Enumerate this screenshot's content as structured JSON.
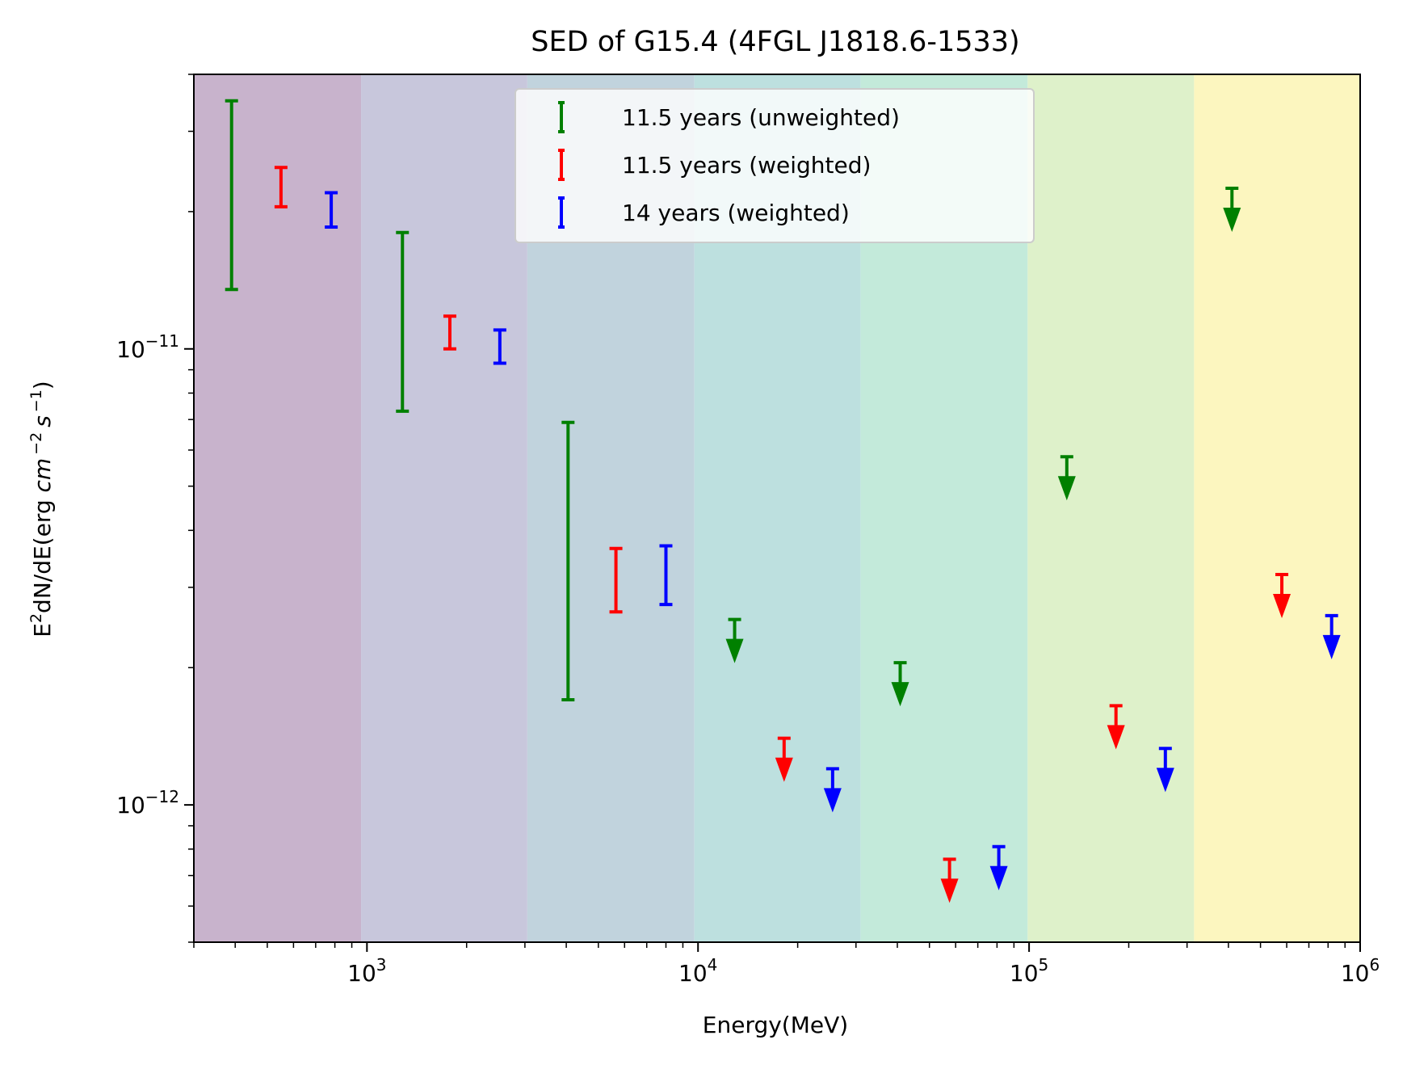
{
  "chart_data": {
    "type": "scatter",
    "title": "SED of G15.4 (4FGL J1818.6-1533)",
    "xlabel": "Energy(MeV)",
    "ylabel_main": "E",
    "ylabel_sup": "2",
    "ylabel_rest": "dN/dE(erg ",
    "ylabel_cm": "cm",
    "ylabel_cm_exp": "−2",
    "ylabel_s": "s",
    "ylabel_s_exp": "−1",
    "ylabel_close": ")",
    "xscale": "log",
    "yscale": "log",
    "xlim": [
      300,
      1000000
    ],
    "ylim": [
      5e-13,
      4e-11
    ],
    "x_ticks": [
      {
        "value": 1000,
        "base": "10",
        "exp": "3"
      },
      {
        "value": 10000,
        "base": "10",
        "exp": "4"
      },
      {
        "value": 100000,
        "base": "10",
        "exp": "5"
      },
      {
        "value": 1000000,
        "base": "10",
        "exp": "6"
      }
    ],
    "y_ticks": [
      {
        "value": 1e-12,
        "base": "10",
        "exp": "−12"
      },
      {
        "value": 1e-11,
        "base": "10",
        "exp": "−11"
      }
    ],
    "bands": [
      {
        "from": 300,
        "to": 960,
        "color": "#c8b3cc"
      },
      {
        "from": 960,
        "to": 3050,
        "color": "#c8c7dc"
      },
      {
        "from": 3050,
        "to": 9750,
        "color": "#c1d3dd"
      },
      {
        "from": 9750,
        "to": 31000,
        "color": "#bde0df"
      },
      {
        "from": 31000,
        "to": 99000,
        "color": "#c3eada"
      },
      {
        "from": 99000,
        "to": 315000,
        "color": "#def1ca"
      },
      {
        "from": 315000,
        "to": 1000000,
        "color": "#fcf6bf"
      }
    ],
    "legend_position": "top-center",
    "series": [
      {
        "name": "11.5 years (unweighted)",
        "color": "#008000",
        "errorbars": [
          {
            "x": 390,
            "low": 1.35e-11,
            "high": 3.5e-11
          },
          {
            "x": 1280,
            "low": 7.3e-12,
            "high": 1.8e-11
          },
          {
            "x": 4050,
            "low": 1.7e-12,
            "high": 6.9e-12
          }
        ],
        "upper_limits": [
          {
            "x": 12900,
            "y": 2.55e-12
          },
          {
            "x": 40800,
            "y": 2.05e-12
          },
          {
            "x": 130000,
            "y": 5.8e-12
          },
          {
            "x": 410000,
            "y": 2.25e-11
          }
        ]
      },
      {
        "name": "11.5 years (weighted)",
        "color": "#ff0000",
        "errorbars": [
          {
            "x": 550,
            "low": 2.05e-11,
            "high": 2.5e-11
          },
          {
            "x": 1780,
            "low": 1e-11,
            "high": 1.18e-11
          },
          {
            "x": 5650,
            "low": 2.65e-12,
            "high": 3.65e-12
          }
        ],
        "upper_limits": [
          {
            "x": 18200,
            "y": 1.4e-12
          },
          {
            "x": 57500,
            "y": 7.6e-13
          },
          {
            "x": 183000,
            "y": 1.65e-12
          },
          {
            "x": 580000,
            "y": 3.2e-12
          }
        ]
      },
      {
        "name": "14 years (weighted)",
        "color": "#0000ff",
        "errorbars": [
          {
            "x": 780,
            "low": 1.85e-11,
            "high": 2.2e-11
          },
          {
            "x": 2520,
            "low": 9.3e-12,
            "high": 1.1e-11
          },
          {
            "x": 8000,
            "low": 2.75e-12,
            "high": 3.7e-12
          }
        ],
        "upper_limits": [
          {
            "x": 25500,
            "y": 1.2e-12
          },
          {
            "x": 81000,
            "y": 8.1e-13
          },
          {
            "x": 258000,
            "y": 1.33e-12
          },
          {
            "x": 820000,
            "y": 2.6e-12
          }
        ]
      }
    ]
  }
}
